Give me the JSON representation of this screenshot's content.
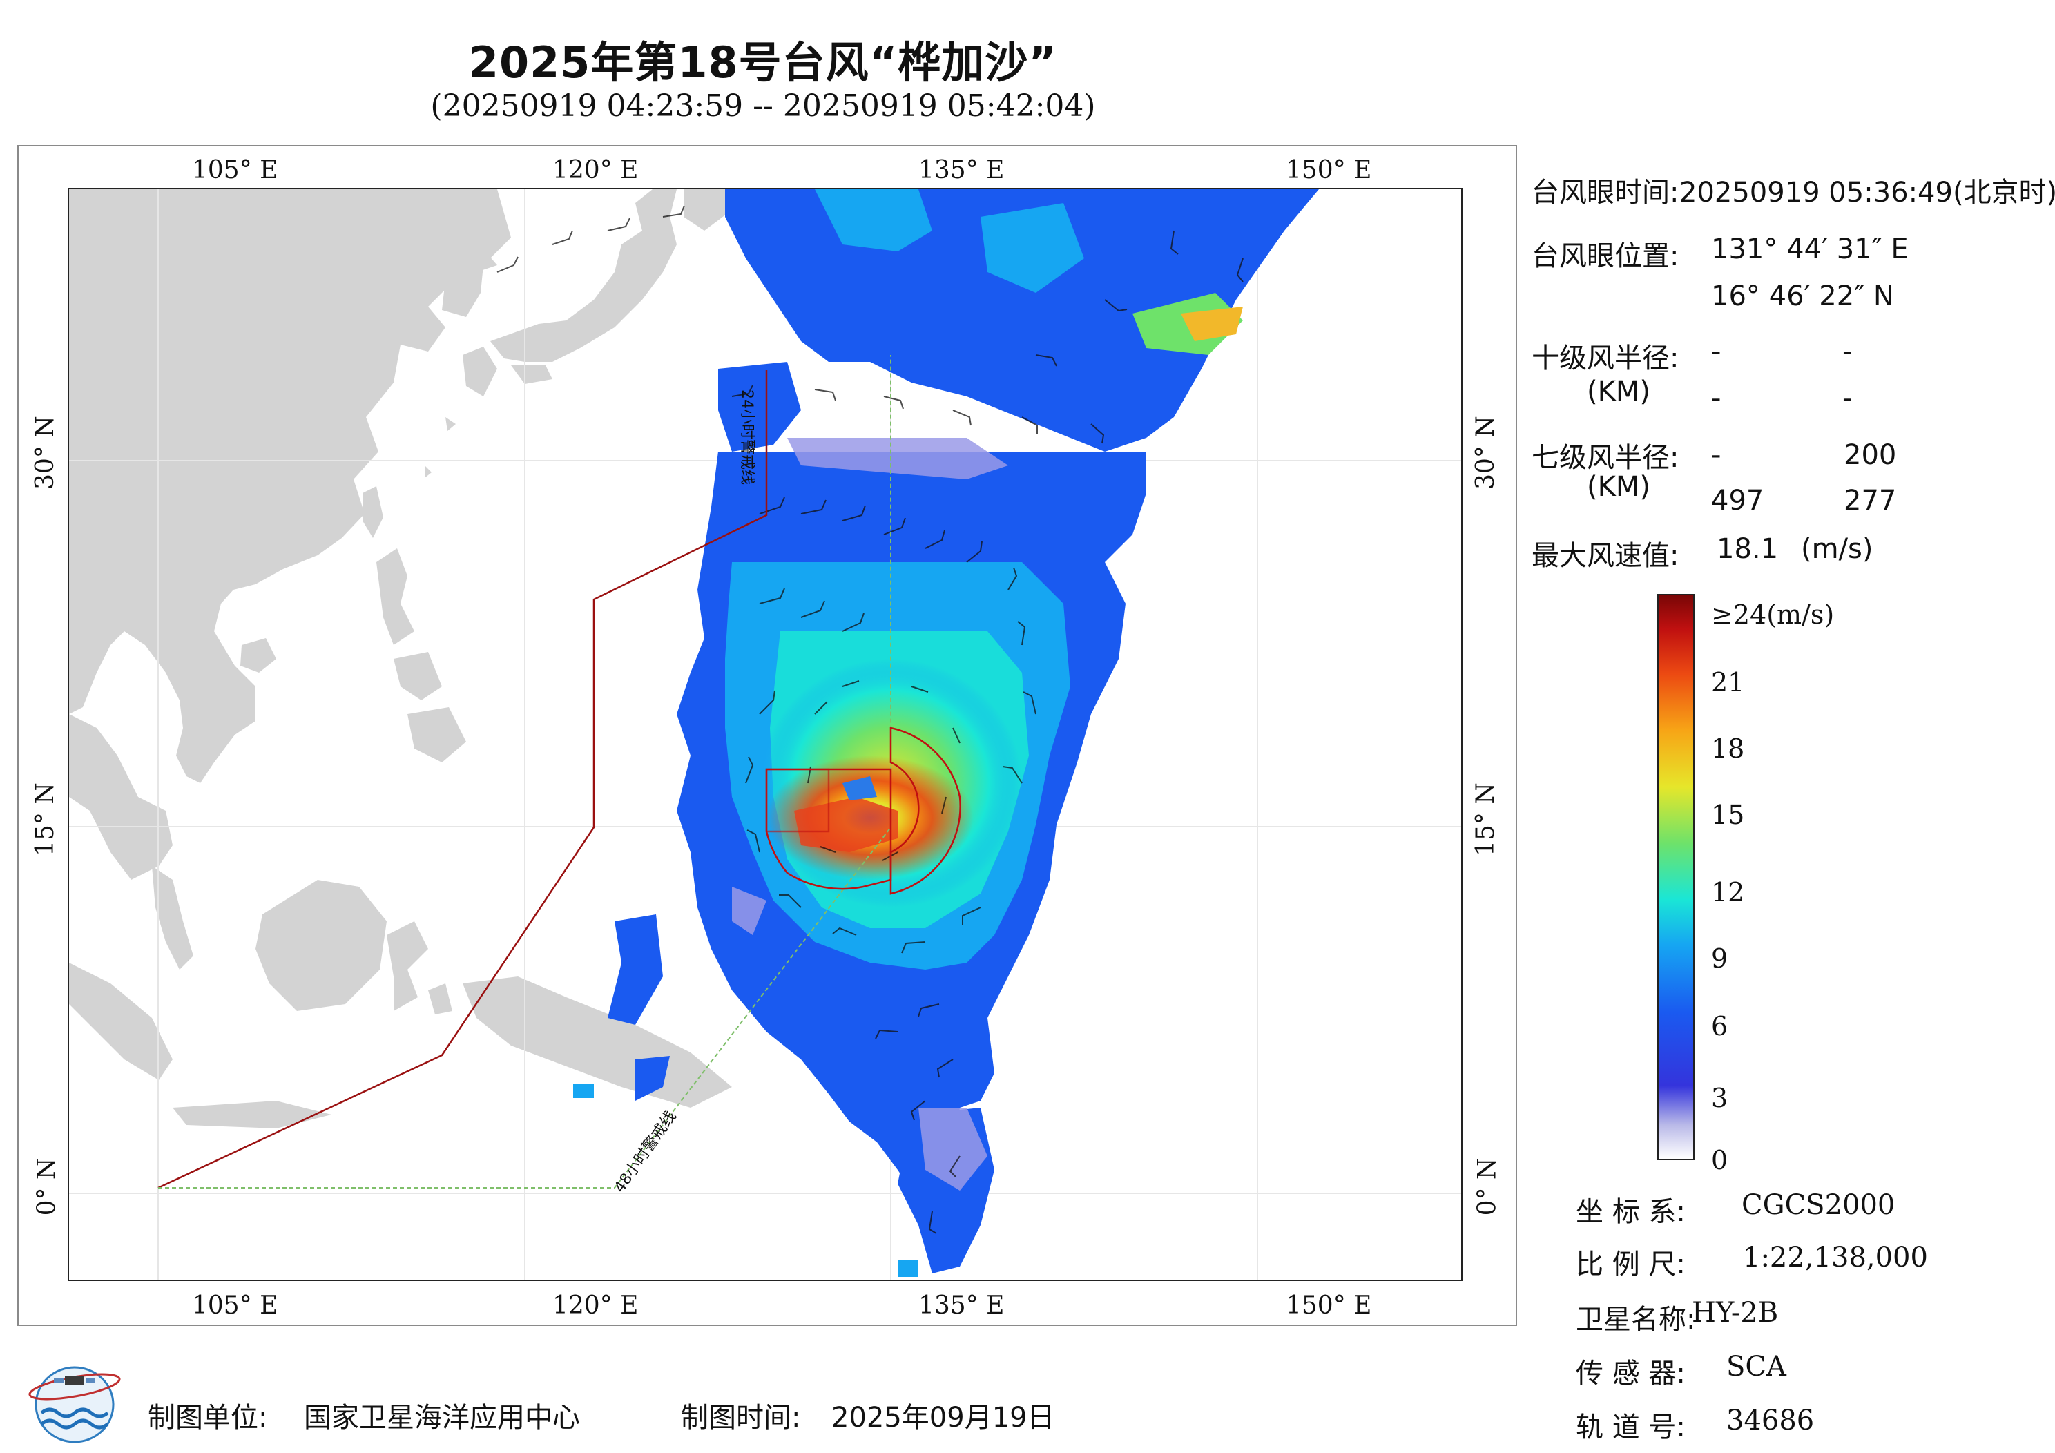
{
  "title": "2025年第18号台风“桦加沙”",
  "subtitle": "(20250919 04:23:59 -- 20250919 05:42:04)",
  "axes": {
    "lon_labels": [
      "105° E",
      "120° E",
      "135° E",
      "150° E"
    ],
    "lat_labels": [
      "30° N",
      "15° N",
      "0° N"
    ]
  },
  "boundaries": {
    "warn24": "24小时警戒线",
    "warn48": "48小时警戒线"
  },
  "info": {
    "eye_time_label": "台风眼时间:",
    "eye_time_value": "20250919 05:36:49(北京时)",
    "eye_pos_label": "台风眼位置:",
    "eye_lon": "131° 44′ 31″ E",
    "eye_lat": "16° 46′ 22″ N",
    "r10_label": "十级风半径:",
    "r10_unit": "(KM)",
    "r10_values": [
      "-",
      "-",
      "-",
      "-"
    ],
    "r7_label": "七级风半径:",
    "r7_unit": "(KM)",
    "r7_values": [
      "-",
      "200",
      "497",
      "277"
    ],
    "maxwind_label": "最大风速值:",
    "maxwind_value": "18.1",
    "maxwind_unit": "(m/s)"
  },
  "colorbar": {
    "top_label": "≥24(m/s)",
    "ticks": [
      "21",
      "18",
      "15",
      "12",
      "9",
      "6",
      "3",
      "0"
    ],
    "colors": [
      "#ffffff",
      "#3434dc",
      "#16a6f2",
      "#6ee26a",
      "#e6e62a",
      "#f7a516",
      "#ec4a12",
      "#7a0606"
    ]
  },
  "meta": {
    "crs_label": "坐 标 系:",
    "crs_value": "CGCS2000",
    "scale_label": "比 例 尺:",
    "scale_value": "1:22,138,000",
    "sat_label": "卫星名称:",
    "sat_value": "HY-2B",
    "sensor_label": "传 感 器:",
    "sensor_value": "SCA",
    "orbit_label": "轨 道 号:",
    "orbit_value": "34686"
  },
  "footer": {
    "org_label": "制图单位:",
    "org_value": "国家卫星海洋应用中心",
    "date_label": "制图时间:",
    "date_value": "2025年09月19日"
  }
}
